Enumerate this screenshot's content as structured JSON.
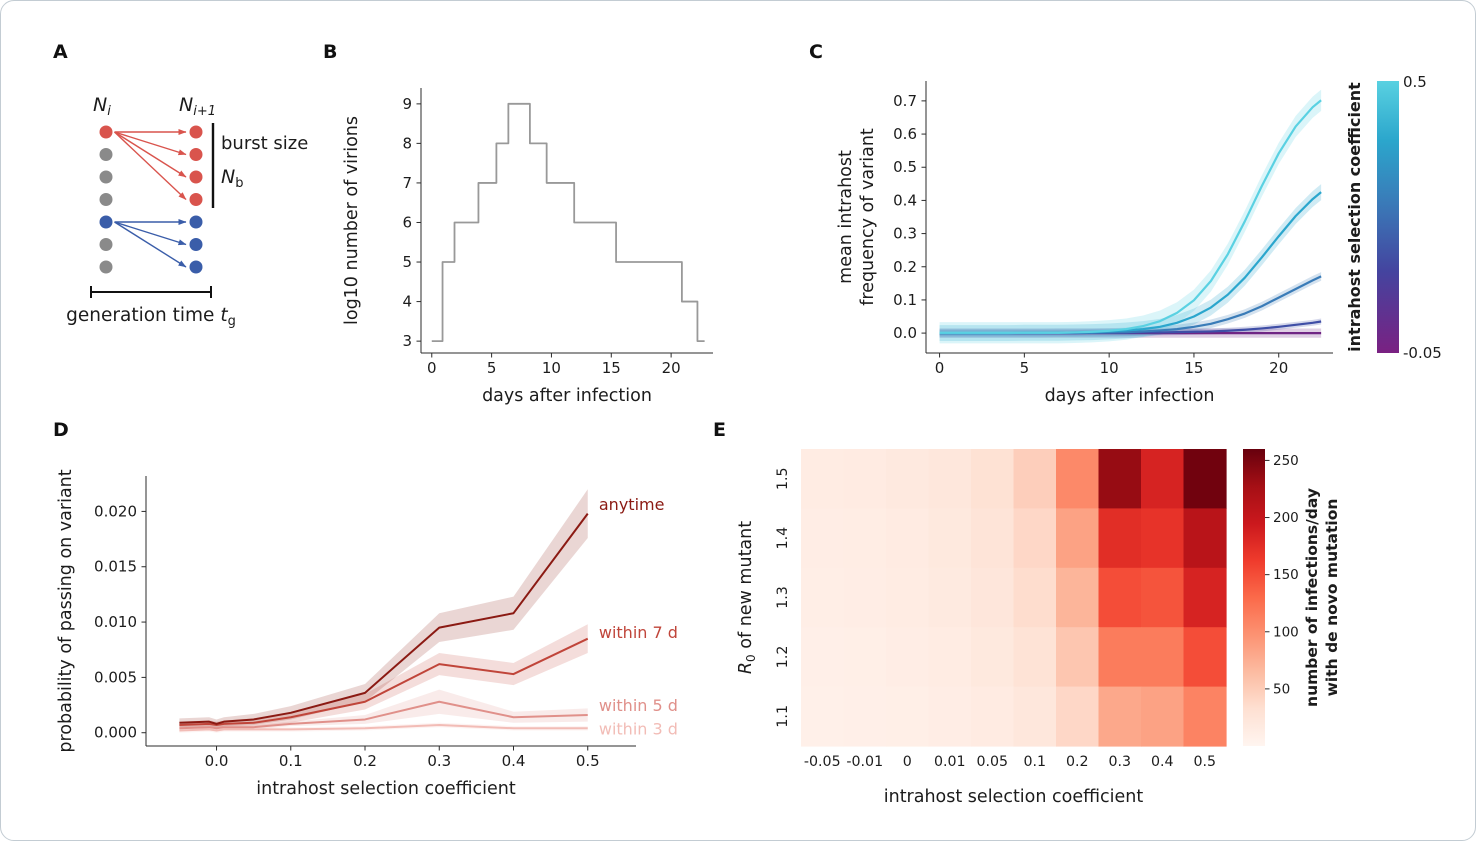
{
  "panels": {
    "a": "A",
    "b": "B",
    "c": "C",
    "d": "D",
    "e": "E"
  },
  "panel_a": {
    "left_label": {
      "main": "N",
      "sub": "i"
    },
    "right_label": {
      "main": "N",
      "sub": "i+1"
    },
    "burst_size_label": "burst size",
    "burst_n": {
      "main": "N",
      "sub": "b"
    },
    "generation_label": {
      "prefix": "generation time ",
      "var": "t",
      "sub": "g"
    },
    "colors": {
      "red": "#d9544d",
      "blue": "#3a5da9",
      "gray": "#8a8a8a"
    },
    "left_dots": [
      "red",
      "gray",
      "gray",
      "gray",
      "blue",
      "gray",
      "gray"
    ],
    "right_dots": [
      "red",
      "red",
      "red",
      "red",
      "blue",
      "blue",
      "blue"
    ],
    "arrows": [
      {
        "color": "red",
        "from": 0,
        "to": [
          0,
          1,
          2,
          3
        ]
      },
      {
        "color": "blue",
        "from": 4,
        "to": [
          4,
          5,
          6
        ]
      }
    ]
  },
  "chart_data": [
    {
      "panel": "B",
      "type": "line",
      "subtype": "step",
      "xlabel": "days after infection",
      "ylabel": "log10 number of virions",
      "xlim": [
        -0.9,
        23.5
      ],
      "ylim": [
        2.7,
        9.4
      ],
      "xticks": [
        [
          0,
          "0"
        ],
        [
          5,
          "5"
        ],
        [
          10,
          "10"
        ],
        [
          15,
          "15"
        ],
        [
          20,
          "20"
        ]
      ],
      "yticks": [
        [
          3,
          "3"
        ],
        [
          4,
          "4"
        ],
        [
          5,
          "5"
        ],
        [
          6,
          "6"
        ],
        [
          7,
          "7"
        ],
        [
          8,
          "8"
        ],
        [
          9,
          "9"
        ]
      ],
      "line_color": "#999999",
      "steps": [
        [
          0,
          3
        ],
        [
          0.9,
          5
        ],
        [
          1.9,
          6
        ],
        [
          3.9,
          7
        ],
        [
          5.4,
          8
        ],
        [
          6.4,
          9
        ],
        [
          8.2,
          8
        ],
        [
          9.6,
          7
        ],
        [
          11.9,
          6
        ],
        [
          15.4,
          5
        ],
        [
          20.9,
          4
        ],
        [
          22.2,
          3
        ],
        [
          22.8,
          3
        ]
      ]
    },
    {
      "panel": "C",
      "type": "line",
      "xlabel": "days after infection",
      "ylabel_lines": [
        "mean intrahost",
        "frequency of variant"
      ],
      "xlim": [
        -0.8,
        23.2
      ],
      "ylim": [
        -0.06,
        0.76
      ],
      "xticks": [
        [
          0,
          "0"
        ],
        [
          5,
          "5"
        ],
        [
          10,
          "10"
        ],
        [
          15,
          "15"
        ],
        [
          20,
          "20"
        ]
      ],
      "yticks": [
        [
          0,
          "0.0"
        ],
        [
          0.1,
          "0.1"
        ],
        [
          0.2,
          "0.2"
        ],
        [
          0.3,
          "0.3"
        ],
        [
          0.4,
          "0.4"
        ],
        [
          0.5,
          "0.5"
        ],
        [
          0.6,
          "0.6"
        ],
        [
          0.7,
          "0.7"
        ]
      ],
      "x": [
        0,
        1,
        2,
        3,
        4,
        5,
        6,
        7,
        8,
        9,
        10,
        11,
        12,
        13,
        14,
        15,
        16,
        17,
        18,
        19,
        20,
        21,
        22,
        22.5
      ],
      "series": [
        {
          "coefficient": 0.5,
          "color": "#5ad1e2",
          "band": 0.032,
          "values": [
            0.001,
            0.001,
            0.001,
            0.001,
            0.001,
            0.001,
            0.001,
            0.001,
            0.002,
            0.004,
            0.007,
            0.012,
            0.021,
            0.036,
            0.061,
            0.099,
            0.157,
            0.238,
            0.337,
            0.443,
            0.542,
            0.623,
            0.681,
            0.702
          ]
        },
        {
          "coefficient": 0.4,
          "color": "#2ba6cd",
          "band": 0.024,
          "values": [
            0,
            0,
            0,
            0,
            0,
            0.001,
            0.001,
            0.001,
            0.002,
            0.003,
            0.005,
            0.008,
            0.012,
            0.019,
            0.031,
            0.05,
            0.077,
            0.116,
            0.167,
            0.228,
            0.292,
            0.353,
            0.404,
            0.425
          ]
        },
        {
          "coefficient": 0.3,
          "color": "#3a7cb8",
          "band": 0.013,
          "values": [
            0,
            0,
            0,
            0,
            0,
            0,
            0,
            0.001,
            0.001,
            0.001,
            0.002,
            0.003,
            0.005,
            0.008,
            0.012,
            0.019,
            0.028,
            0.042,
            0.059,
            0.081,
            0.107,
            0.133,
            0.159,
            0.171
          ]
        },
        {
          "coefficient": 0.2,
          "color": "#3f4ea6",
          "band": 0.009,
          "values": [
            0,
            0,
            0,
            0,
            0,
            0,
            0,
            0,
            0,
            0.001,
            0.001,
            0.001,
            0.002,
            0.002,
            0.003,
            0.004,
            0.005,
            0.007,
            0.01,
            0.014,
            0.019,
            0.025,
            0.031,
            0.035
          ]
        },
        {
          "coefficient": -0.05,
          "color": "#6f2584",
          "band": 0.014,
          "values": [
            0,
            0,
            0,
            0,
            0,
            0,
            0,
            0,
            0,
            0,
            0,
            0,
            0,
            0,
            0,
            0,
            0,
            0,
            0,
            0,
            0,
            0,
            0,
            0
          ]
        }
      ],
      "colorbar": {
        "label": "intrahost selection coefficient",
        "top_tick": "0.5",
        "bottom_tick": "-0.05",
        "stops": [
          [
            0,
            "#7a2182"
          ],
          [
            0.3,
            "#44449f"
          ],
          [
            0.55,
            "#3a7ab8"
          ],
          [
            0.78,
            "#2ba6cc"
          ],
          [
            1,
            "#59d1e1"
          ]
        ]
      }
    },
    {
      "panel": "D",
      "type": "line",
      "xlabel": "intrahost selection coefficient",
      "ylabel": "probability of passing on variant",
      "xlim": [
        -0.095,
        0.565
      ],
      "ylim": [
        -0.0012,
        0.0232
      ],
      "xticks": [
        [
          0,
          "0.0"
        ],
        [
          0.1,
          "0.1"
        ],
        [
          0.2,
          "0.2"
        ],
        [
          0.3,
          "0.3"
        ],
        [
          0.4,
          "0.4"
        ],
        [
          0.5,
          "0.5"
        ]
      ],
      "yticks": [
        [
          0,
          "0.000"
        ],
        [
          0.005,
          "0.005"
        ],
        [
          0.01,
          "0.010"
        ],
        [
          0.015,
          "0.015"
        ],
        [
          0.02,
          "0.020"
        ]
      ],
      "x": [
        -0.05,
        -0.01,
        0,
        0.01,
        0.05,
        0.1,
        0.2,
        0.3,
        0.4,
        0.5
      ],
      "series": [
        {
          "name": "anytime",
          "color": "#8b1a13",
          "values": [
            0.0009,
            0.001,
            0.0008,
            0.001,
            0.0012,
            0.0018,
            0.0036,
            0.0095,
            0.0108,
            0.0198
          ],
          "band": [
            0.0004,
            0.0004,
            0.0004,
            0.0004,
            0.0005,
            0.0006,
            0.0008,
            0.0013,
            0.0015,
            0.0022
          ],
          "label_pos": [
            0.515,
            0.0206
          ]
        },
        {
          "name": "within 7 d",
          "color": "#c0453a",
          "values": [
            0.0007,
            0.0008,
            0.0007,
            0.0008,
            0.0009,
            0.0014,
            0.0028,
            0.0062,
            0.0053,
            0.0085
          ],
          "band": [
            0.0003,
            0.0003,
            0.0003,
            0.0003,
            0.0004,
            0.0005,
            0.0007,
            0.001,
            0.001,
            0.0013
          ],
          "label_pos": [
            0.515,
            0.009
          ]
        },
        {
          "name": "within 5 d",
          "color": "#e0908a",
          "values": [
            0.0004,
            0.0005,
            0.0004,
            0.0005,
            0.0005,
            0.0008,
            0.0012,
            0.0028,
            0.0014,
            0.0016
          ],
          "band": [
            0.0002,
            0.0002,
            0.0002,
            0.0002,
            0.0002,
            0.0002,
            0.0004,
            0.0011,
            0.0005,
            0.0006
          ],
          "label_pos": [
            0.515,
            0.0024
          ]
        },
        {
          "name": "within 3 d",
          "color": "#f2bcb6",
          "values": [
            0.0002,
            0.0003,
            0.0002,
            0.0003,
            0.0003,
            0.0003,
            0.0004,
            0.0007,
            0.0004,
            0.0004
          ],
          "band": [
            0.0002,
            0.0002,
            0.0002,
            0.0002,
            0.0002,
            0.0002,
            0.0002,
            0.0002,
            0.0002,
            0.0002
          ],
          "label_pos": [
            0.515,
            0.0003
          ]
        }
      ]
    },
    {
      "panel": "E",
      "type": "heatmap",
      "xlabel": "intrahost selection coefficient",
      "ylabel": {
        "main": "R",
        "sub": "0",
        "rest": " of new mutant"
      },
      "x_categories": [
        "-0.05",
        "-0.01",
        "0",
        "0.01",
        "0.05",
        "0.1",
        "0.2",
        "0.3",
        "0.4",
        "0.5"
      ],
      "y_categories": [
        "1.5",
        "1.4",
        "1.3",
        "1.2",
        "1.1"
      ],
      "values": [
        [
          14,
          15,
          18,
          22,
          30,
          48,
          105,
          235,
          185,
          255
        ],
        [
          12,
          13,
          15,
          19,
          26,
          40,
          85,
          175,
          170,
          210
        ],
        [
          11,
          12,
          14,
          17,
          23,
          35,
          70,
          150,
          145,
          185
        ],
        [
          9,
          10,
          12,
          14,
          19,
          28,
          55,
          115,
          115,
          150
        ],
        [
          8,
          9,
          10,
          12,
          15,
          22,
          40,
          80,
          85,
          110
        ]
      ],
      "clim": [
        0,
        260
      ],
      "colormap_stops": [
        [
          0,
          "#fff5f0"
        ],
        [
          0.125,
          "#fee0d2"
        ],
        [
          0.25,
          "#fcbba1"
        ],
        [
          0.375,
          "#fc9272"
        ],
        [
          0.5,
          "#fb6a4a"
        ],
        [
          0.625,
          "#ef3b2c"
        ],
        [
          0.75,
          "#cb181d"
        ],
        [
          0.875,
          "#a50f15"
        ],
        [
          1,
          "#67000d"
        ]
      ],
      "colorbar": {
        "ticks": [
          50,
          100,
          150,
          200,
          250
        ],
        "label_lines": [
          "number of infections/day",
          "with de novo mutation"
        ]
      }
    }
  ]
}
